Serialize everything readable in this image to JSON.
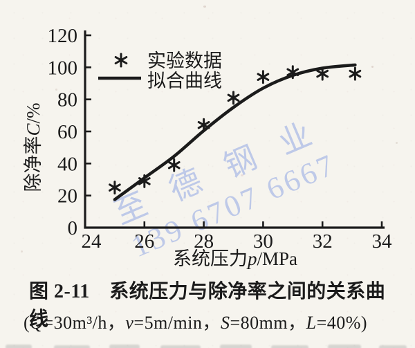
{
  "watermark": {
    "line1": "至德钢业",
    "line2": "139 6707 6667",
    "color": "#b5c2e7"
  },
  "chart_data": {
    "type": "scatter",
    "title": "图 2-11 系统压力与除净率之间的关系曲线",
    "xlabel": "系统压力p/MPa",
    "xlabel_parts": {
      "cjk": "系统压力",
      "var": "p",
      "unit": "/MPa"
    },
    "ylabel": "除净率C/%",
    "ylabel_parts": {
      "cjk": "除净率",
      "var": "C",
      "unit": "/%"
    },
    "xlim": [
      24,
      34
    ],
    "ylim": [
      0,
      120
    ],
    "x_ticks": [
      24,
      26,
      28,
      30,
      32,
      34
    ],
    "y_ticks": [
      0,
      20,
      40,
      60,
      80,
      100,
      120
    ],
    "grid": false,
    "legend_position": "upper-left-inside",
    "legend": [
      {
        "label": "实验数据",
        "marker": "asterisk"
      },
      {
        "label": "拟合曲线",
        "marker": "line"
      }
    ],
    "series": [
      {
        "name": "实验数据",
        "type": "scatter",
        "marker": "asterisk",
        "points": [
          [
            25,
            25
          ],
          [
            26,
            29
          ],
          [
            27,
            39
          ],
          [
            28,
            64
          ],
          [
            29,
            81
          ],
          [
            30,
            94
          ],
          [
            31,
            97
          ],
          [
            32,
            96
          ],
          [
            33.1,
            96
          ]
        ]
      },
      {
        "name": "拟合曲线",
        "type": "line",
        "points": [
          [
            25,
            17.5
          ],
          [
            26,
            31
          ],
          [
            27,
            44.5
          ],
          [
            28,
            60.5
          ],
          [
            29,
            75
          ],
          [
            30,
            87
          ],
          [
            31,
            95
          ],
          [
            32,
            99.5
          ],
          [
            33.1,
            101.5
          ]
        ]
      }
    ],
    "ink_color": "#1b1b1b"
  },
  "caption": {
    "line1": "图 2-11　系统压力与除净率之间的关系曲线",
    "line2": "(Q=30m³/h，v=5m/min，S=80mm，L=40%)"
  }
}
